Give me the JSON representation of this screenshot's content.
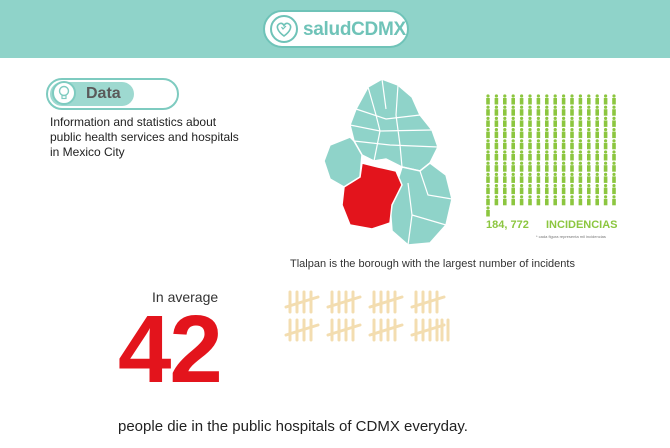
{
  "header": {
    "logo_text": "saludCDMX",
    "logo_icon": "heart-icon",
    "color": "#8fd3c9"
  },
  "section": {
    "label": "Data",
    "icon": "lightbulb-icon",
    "intro": "Information and statistics about public health services and hospitals in Mexico City"
  },
  "map": {
    "highlight_color": "#e3141c",
    "base_color": "#8fd3c9",
    "caption": "Tlalpan is the borough with the largest number of incidents"
  },
  "incidents": {
    "value": "184, 772",
    "label": "INCIDENCIAS",
    "note": "* cada figura representa mil incidencias",
    "color": "#8cc63f"
  },
  "stat": {
    "lead": "In average",
    "number": "42",
    "tagline": "people die in the public hospitals of CDMX everyday.",
    "tally_count": 42,
    "tally_color": "#f3ddb0"
  }
}
